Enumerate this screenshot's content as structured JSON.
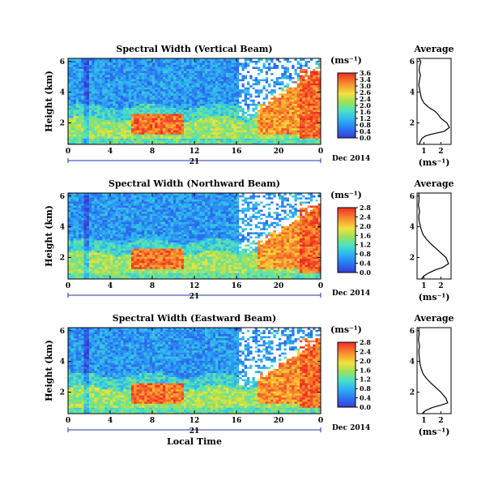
{
  "chart_data": [
    {
      "type": "heatmap",
      "title": "Spectral Width (Vertical Beam)",
      "ylabel": "Height (km)",
      "x_ticks": [
        "0",
        "4",
        "8",
        "12",
        "16",
        "20",
        "0"
      ],
      "xlim": [
        0,
        24
      ],
      "y_ticks": [
        "2",
        "4",
        "6"
      ],
      "ylim": [
        0.6,
        6.2
      ],
      "day_label": "21",
      "date_label": "Dec 2014",
      "colorbar": {
        "unit_label": "(ms⁻¹)",
        "ticks": [
          "3.6",
          "3.4",
          "3.0",
          "2.6",
          "2.4",
          "2.0",
          "1.6",
          "1.2",
          "0.8",
          "0.4",
          "0.0"
        ],
        "range": [
          0,
          3.6
        ]
      },
      "profile": {
        "title": "Average",
        "x_ticks": [
          "1",
          "2"
        ],
        "xlim": [
          0.6,
          2.6
        ],
        "xlabel": "(ms⁻¹)",
        "y_ticks": [
          "2",
          "4",
          "6"
        ],
        "ylim": [
          0.6,
          6.2
        ],
        "x": [
          0.72,
          0.8,
          0.9,
          1.1,
          1.4,
          1.8,
          2.2,
          2.5,
          2.35,
          2.0,
          1.8,
          1.6,
          1.3,
          1.0,
          0.85,
          0.8,
          0.75,
          0.7,
          0.75,
          0.8,
          0.72,
          0.75,
          0.82,
          0.7
        ],
        "y": [
          0.6,
          0.8,
          1.0,
          1.15,
          1.25,
          1.35,
          1.45,
          1.7,
          2.0,
          2.3,
          2.6,
          2.8,
          3.0,
          3.3,
          3.6,
          3.9,
          4.2,
          4.5,
          4.8,
          5.1,
          5.4,
          5.7,
          6.0,
          6.2
        ]
      }
    },
    {
      "type": "heatmap",
      "title": "Spectral Width (Northward Beam)",
      "ylabel": "Height (km)",
      "x_ticks": [
        "0",
        "4",
        "8",
        "12",
        "16",
        "20",
        "0"
      ],
      "xlim": [
        0,
        24
      ],
      "y_ticks": [
        "2",
        "4",
        "6"
      ],
      "ylim": [
        0.6,
        6.2
      ],
      "day_label": "21",
      "date_label": "Dec 2014",
      "colorbar": {
        "unit_label": "(ms⁻¹)",
        "ticks": [
          "2.8",
          "2.4",
          "2.0",
          "1.6",
          "1.2",
          "0.8",
          "0.4",
          "0.0"
        ],
        "range": [
          0,
          2.8
        ]
      },
      "profile": {
        "title": "Average",
        "x_ticks": [
          "1",
          "2"
        ],
        "xlim": [
          0.6,
          2.6
        ],
        "xlabel": "(ms⁻¹)",
        "y_ticks": [
          "2",
          "4",
          "6"
        ],
        "ylim": [
          0.6,
          6.2
        ],
        "x": [
          0.85,
          1.0,
          1.3,
          1.7,
          2.1,
          2.45,
          2.3,
          2.0,
          1.7,
          1.4,
          1.15,
          0.95,
          0.85,
          0.78,
          0.72,
          0.7,
          0.75,
          0.68,
          0.72,
          0.7
        ],
        "y": [
          0.6,
          0.8,
          1.0,
          1.2,
          1.35,
          1.6,
          2.0,
          2.3,
          2.6,
          2.9,
          3.2,
          3.5,
          3.8,
          4.1,
          4.4,
          4.7,
          5.0,
          5.4,
          5.8,
          6.2
        ]
      }
    },
    {
      "type": "heatmap",
      "title": "Spectral Width (Eastward Beam)",
      "ylabel": "Height (km)",
      "x_ticks": [
        "0",
        "4",
        "8",
        "12",
        "16",
        "20",
        "0"
      ],
      "xlim": [
        0,
        24
      ],
      "y_ticks": [
        "2",
        "4",
        "6"
      ],
      "ylim": [
        0.6,
        6.2
      ],
      "day_label": "21",
      "date_label": "Dec 2014",
      "xlabel": "Local Time",
      "colorbar": {
        "unit_label": "(ms⁻¹)",
        "ticks": [
          "2.8",
          "2.4",
          "2.0",
          "1.6",
          "1.2",
          "0.8",
          "0.4",
          "0.0"
        ],
        "range": [
          0,
          2.8
        ]
      },
      "profile": {
        "title": "Average",
        "x_ticks": [
          "1",
          "2"
        ],
        "xlim": [
          0.6,
          2.6
        ],
        "xlabel": "(ms⁻¹)",
        "y_ticks": [
          "2",
          "4",
          "6"
        ],
        "ylim": [
          0.6,
          6.2
        ],
        "x": [
          0.9,
          1.1,
          1.5,
          2.0,
          2.4,
          2.3,
          2.0,
          1.7,
          1.4,
          1.15,
          0.95,
          0.85,
          0.78,
          0.75,
          0.72,
          0.7,
          0.75,
          0.68,
          0.72,
          0.7
        ],
        "y": [
          0.6,
          0.8,
          1.0,
          1.15,
          1.3,
          1.6,
          2.0,
          2.3,
          2.6,
          2.9,
          3.2,
          3.5,
          3.8,
          4.1,
          4.4,
          4.7,
          5.0,
          5.4,
          5.8,
          6.2
        ]
      }
    }
  ]
}
